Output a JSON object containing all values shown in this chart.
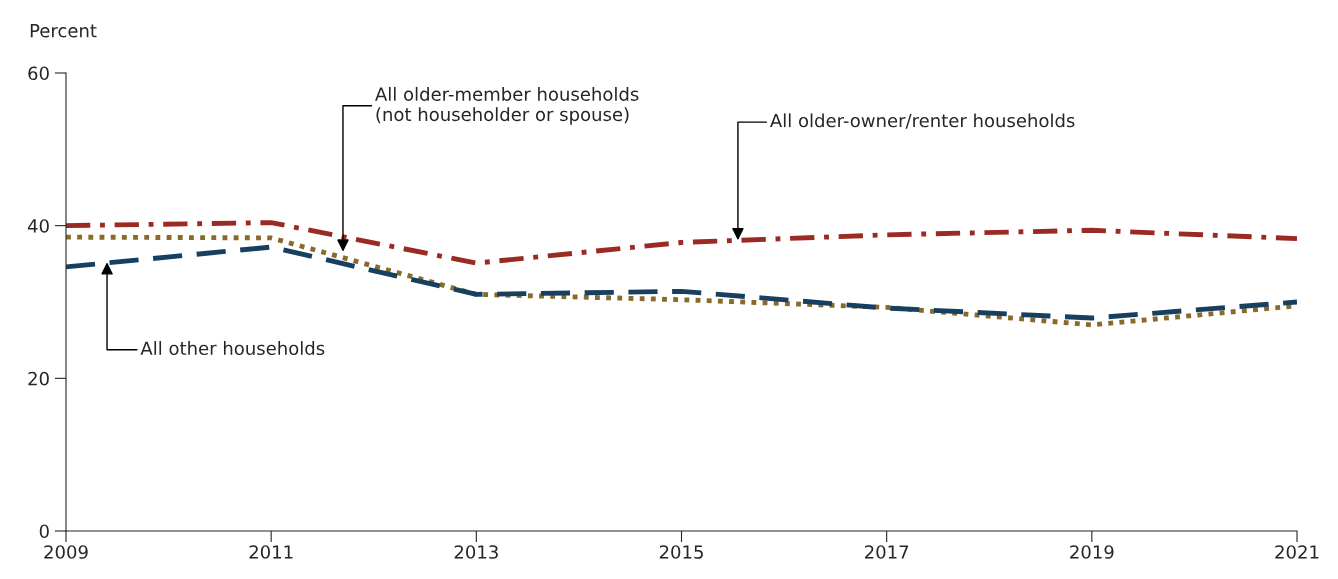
{
  "chart_data": {
    "type": "line",
    "ylabel": "Percent",
    "x": [
      2009,
      2011,
      2013,
      2015,
      2017,
      2019,
      2021
    ],
    "series": [
      {
        "color": "#9b2a22",
        "line_style": "dashdot",
        "values": [
          40.0,
          40.4,
          35.1,
          37.8,
          38.8,
          39.4,
          38.3
        ]
      },
      {
        "color": "#8a6a2a",
        "line_style": "dotted",
        "values": [
          38.5,
          38.4,
          31.0,
          30.3,
          29.3,
          27.0,
          29.5
        ]
      },
      {
        "color": "#173f5f",
        "line_style": "dashed",
        "values": [
          34.6,
          37.2,
          31.0,
          31.4,
          29.2,
          27.9,
          30.0
        ]
      }
    ],
    "annotations": [
      {
        "text": "All older-member households\n(not householder or spouse)",
        "x": 2011.7,
        "y": 36.6
      },
      {
        "text": "All older-owner/renter households",
        "x": 2015.55,
        "y": 38.1
      },
      {
        "text": "All other households",
        "x": 2009.4,
        "y": 35.2
      }
    ],
    "xlim": [
      2009,
      2021
    ],
    "xticks": [
      2009,
      2011,
      2013,
      2015,
      2017,
      2019,
      2021
    ],
    "ylim": [
      0,
      60
    ],
    "yticks": [
      0,
      20,
      40,
      60
    ],
    "grid": false,
    "legend": false,
    "marker": "none"
  }
}
